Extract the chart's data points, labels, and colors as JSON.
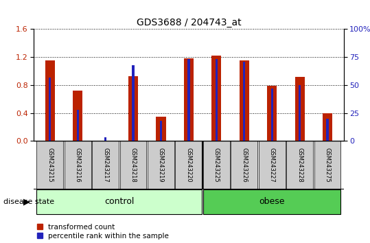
{
  "title": "GDS3688 / 204743_at",
  "samples": [
    "GSM243215",
    "GSM243216",
    "GSM243217",
    "GSM243218",
    "GSM243219",
    "GSM243220",
    "GSM243225",
    "GSM243226",
    "GSM243227",
    "GSM243228",
    "GSM243275"
  ],
  "transformed_count": [
    1.15,
    0.72,
    0.0,
    0.93,
    0.35,
    1.18,
    1.22,
    1.15,
    0.79,
    0.92,
    0.4
  ],
  "percentile_rank": [
    57,
    28,
    3,
    68,
    18,
    73,
    73,
    71,
    47,
    50,
    20
  ],
  "red_color": "#BB2200",
  "blue_color": "#2222BB",
  "left_ylim": [
    0,
    1.6
  ],
  "right_ylim": [
    0,
    100
  ],
  "left_yticks": [
    0,
    0.4,
    0.8,
    1.2,
    1.6
  ],
  "right_yticks": [
    0,
    25,
    50,
    75,
    100
  ],
  "right_yticklabels": [
    "0",
    "25",
    "50",
    "75",
    "100%"
  ],
  "n_control": 6,
  "control_label": "control",
  "obese_label": "obese",
  "disease_state_label": "disease state",
  "legend_red": "transformed count",
  "legend_blue": "percentile rank within the sample",
  "red_bar_width": 0.35,
  "blue_bar_width": 0.08,
  "title_fontsize": 10,
  "control_color": "#CCFFCC",
  "obese_color": "#55CC55",
  "sample_bg_color": "#CCCCCC"
}
